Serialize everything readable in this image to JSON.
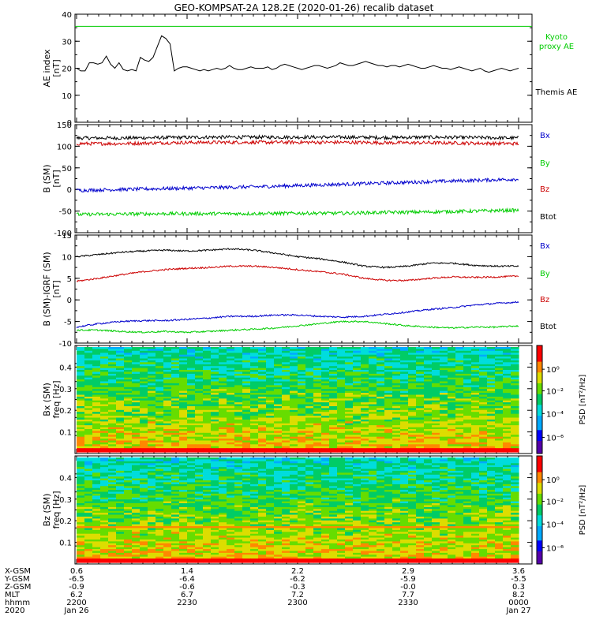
{
  "title": "GEO-KOMPSAT-2A 128.2E (2020-01-26) recalib dataset",
  "colors": {
    "black": "#000000",
    "blue": "#0000cc",
    "green": "#00cc00",
    "red": "#cc0000"
  },
  "chart_data": [
    {
      "type": "line",
      "name": "ae-panel",
      "ylabel": "AE index",
      "yunit": "[nT]",
      "ylim": [
        0,
        40
      ],
      "yticks": [
        "40",
        "30",
        "20",
        "10",
        "0"
      ],
      "legend": [
        {
          "text": "Kyoto",
          "color": "#00cc00"
        },
        {
          "text": "proxy AE",
          "color": "#00cc00"
        },
        {
          "text": "Themis AE",
          "color": "#000000"
        }
      ],
      "series": [
        {
          "color": "#00cc00",
          "values": [
            35.5,
            35.5
          ]
        },
        {
          "color": "#000000",
          "values": [
            20,
            19,
            19,
            22,
            22,
            21.5,
            22,
            24.5,
            21.5,
            20,
            22,
            19.5,
            19,
            19.5,
            19,
            24,
            23,
            22.5,
            24,
            28,
            32,
            31,
            29,
            19,
            20,
            20.5,
            20.5,
            20,
            19.5,
            19,
            19.5,
            19,
            19.5,
            20,
            19.5,
            20,
            21,
            20,
            19.5,
            19.5,
            20,
            20.5,
            20,
            20,
            20,
            20.5,
            19.5,
            20,
            21,
            21.5,
            21,
            20.5,
            20,
            19.5,
            20,
            20.5,
            21,
            21,
            20.5,
            20,
            20.5,
            21,
            22,
            21.5,
            21,
            21,
            21.5,
            22,
            22.5,
            22,
            21.5,
            21,
            21,
            20.5,
            21,
            21,
            20.5,
            21,
            21.5,
            21,
            20.5,
            20,
            20,
            20.5,
            21,
            20.5,
            20,
            20,
            19.5,
            20,
            20.5,
            20,
            19.5,
            19,
            19.5,
            20,
            19,
            18.5,
            19,
            19.5,
            20,
            19.5,
            19,
            19.5,
            20
          ]
        }
      ]
    },
    {
      "type": "line",
      "name": "b-sm-panel",
      "ylabel": "B (SM)",
      "yunit": "[nT]",
      "ylim": [
        -100,
        150
      ],
      "yticks": [
        "150",
        "100",
        "50",
        "0",
        "-50",
        "-100"
      ],
      "legend": [
        {
          "text": "Bx",
          "color": "#0000cc"
        },
        {
          "text": "By",
          "color": "#00cc00"
        },
        {
          "text": "Bz",
          "color": "#cc0000"
        },
        {
          "text": "Btot",
          "color": "#000000"
        }
      ],
      "series": [
        {
          "color": "#000000",
          "values": [
            119,
            119,
            120,
            121,
            121,
            121,
            121,
            120,
            121,
            120,
            119
          ]
        },
        {
          "color": "#cc0000",
          "values": [
            106,
            106,
            108,
            109,
            109,
            109,
            109,
            108,
            108,
            107,
            106
          ]
        },
        {
          "color": "#0000cc",
          "values": [
            -2,
            0,
            2,
            4,
            6,
            9,
            12,
            15,
            18,
            21,
            24
          ]
        },
        {
          "color": "#00cc00",
          "values": [
            -58,
            -57,
            -56,
            -56,
            -56,
            -55,
            -55,
            -53,
            -52,
            -50,
            -48
          ]
        }
      ]
    },
    {
      "type": "line",
      "name": "b-igrf-panel",
      "ylabel": "B (SM)-IGRF (SM)",
      "yunit": "[nT]",
      "ylim": [
        -10,
        15
      ],
      "yticks": [
        "15",
        "10",
        "5",
        "0",
        "-5",
        "-10"
      ],
      "legend": [
        {
          "text": "Bx",
          "color": "#0000cc"
        },
        {
          "text": "By",
          "color": "#00cc00"
        },
        {
          "text": "Bz",
          "color": "#cc0000"
        },
        {
          "text": "Btot",
          "color": "#000000"
        }
      ],
      "series": [
        {
          "color": "#000000",
          "values": [
            10,
            10.5,
            11,
            11.3,
            11.5,
            11.3,
            11.5,
            11.8,
            11.5,
            10.8,
            10,
            9.5,
            8.8,
            7.8,
            7.5,
            7.8,
            8.5,
            8.5,
            8,
            7.8,
            7.8
          ]
        },
        {
          "color": "#cc0000",
          "values": [
            4.3,
            5,
            5.8,
            6.5,
            7,
            7.3,
            7.5,
            7.8,
            7.8,
            7.5,
            7,
            6.5,
            6,
            5,
            4.5,
            4.5,
            5,
            5.3,
            5.2,
            5.3,
            5.5
          ]
        },
        {
          "color": "#0000cc",
          "values": [
            -6.3,
            -5.5,
            -5,
            -4.8,
            -4.8,
            -4.5,
            -4.2,
            -3.8,
            -3.8,
            -3.5,
            -3.5,
            -3.8,
            -4,
            -3.8,
            -3.3,
            -2.8,
            -2.2,
            -1.8,
            -1.2,
            -0.8,
            -0.5
          ]
        },
        {
          "color": "#00cc00",
          "values": [
            -7,
            -7,
            -7.3,
            -7.5,
            -7.3,
            -7.5,
            -7.3,
            -7,
            -6.8,
            -6.5,
            -6,
            -5.5,
            -5,
            -5,
            -5.5,
            -6,
            -6.3,
            -6.5,
            -6.3,
            -6.3,
            -6
          ]
        }
      ]
    },
    {
      "type": "heatmap",
      "name": "bx-spectrogram",
      "ylabel": "Bx (SM)",
      "yunit": "freq [Hz]",
      "ylim": [
        0,
        0.5
      ],
      "yticks": [
        "0.4",
        "0.3",
        "0.2",
        "0.1"
      ],
      "colorbar_label": "PSD [nT²/Hz]",
      "colorbar_ticks": [
        "10⁰",
        "10⁻²",
        "10⁻⁴",
        "10⁻⁶"
      ]
    },
    {
      "type": "heatmap",
      "name": "bz-spectrogram",
      "ylabel": "Bz (SM)",
      "yunit": "freq [Hz]",
      "ylim": [
        0,
        0.5
      ],
      "yticks": [
        "0.4",
        "0.3",
        "0.2",
        "0.1"
      ],
      "colorbar_label": "PSD [nT²/Hz]",
      "colorbar_ticks": [
        "10⁰",
        "10⁻²",
        "10⁻⁴",
        "10⁻⁶"
      ]
    }
  ],
  "xaxis": {
    "row_labels": [
      "X-GSM",
      "Y-GSM",
      "Z-GSM",
      "MLT",
      "hhmm",
      "2020"
    ],
    "columns": [
      [
        "0.6",
        "-6.5",
        "-0.9",
        "6.2",
        "2200",
        "Jan 26"
      ],
      [
        "1.4",
        "-6.4",
        "-0.6",
        "6.7",
        "2230",
        ""
      ],
      [
        "2.2",
        "-6.2",
        "-0.3",
        "7.2",
        "2300",
        ""
      ],
      [
        "2.9",
        "-5.9",
        "-0.0",
        "7.7",
        "2330",
        ""
      ],
      [
        "3.6",
        "-5.5",
        "0.3",
        "8.2",
        "0000",
        "Jan 27"
      ]
    ]
  }
}
